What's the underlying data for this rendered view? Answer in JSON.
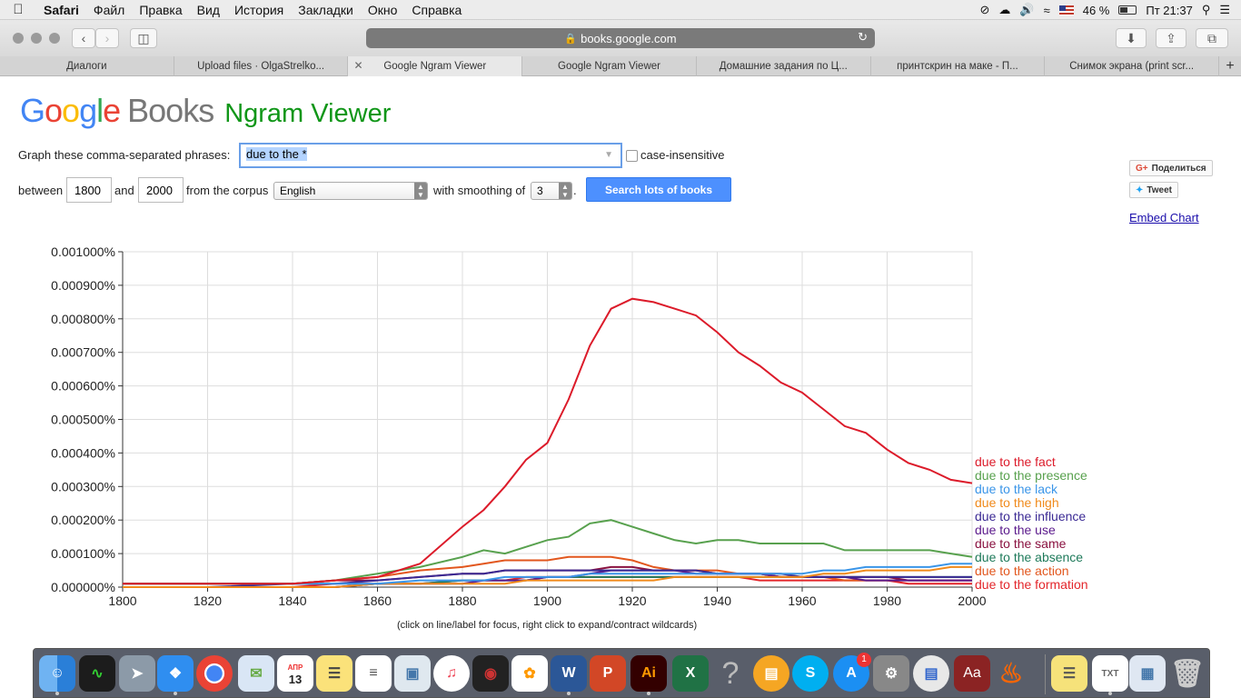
{
  "menubar": {
    "app_name": "Safari",
    "items": [
      "Файл",
      "Правка",
      "Вид",
      "История",
      "Закладки",
      "Окно",
      "Справка"
    ],
    "battery": "46 %",
    "clock": "Пт 21:37"
  },
  "toolbar": {
    "url": "books.google.com"
  },
  "tabs": [
    {
      "label": "Диалоги"
    },
    {
      "label": "Upload files · OlgaStrelko..."
    },
    {
      "label": "Google Ngram Viewer"
    },
    {
      "label": "Google Ngram Viewer"
    },
    {
      "label": "Домашние задания по Ц..."
    },
    {
      "label": "принтскрин на маке - П..."
    },
    {
      "label": "Снимок экрана (print scr..."
    }
  ],
  "logo": {
    "books": "Books",
    "ngram": "Ngram Viewer"
  },
  "form": {
    "phrases_label": "Graph these comma-separated phrases:",
    "phrase_value": "due to the *",
    "case_insensitive_label": "case-insensitive",
    "between_label": "between",
    "year_start": "1800",
    "and_label": "and",
    "year_end": "2000",
    "corpus_label": "from the corpus",
    "corpus_value": "English",
    "smoothing_label": "with smoothing of",
    "smoothing_value": "3",
    "period": ".",
    "search_button": "Search lots of books"
  },
  "social": {
    "share": "Поделиться",
    "tweet": "Tweet",
    "embed": "Embed Chart"
  },
  "footnote": "(click on line/label for focus, right click to expand/contract wildcards)",
  "dock": {
    "calendar_month": "АПР",
    "calendar_day": "13",
    "badge": "1",
    "illustrator": "Ai",
    "word": "W",
    "powerpoint": "P",
    "excel": "X",
    "dictionary": "Aa",
    "help": "?"
  },
  "chart_data": {
    "type": "line",
    "xlim": [
      1800,
      2000
    ],
    "ylim": [
      0,
      1e-05
    ],
    "x_ticks": [
      "1800",
      "1820",
      "1840",
      "1860",
      "1880",
      "1900",
      "1920",
      "1940",
      "1960",
      "1980",
      "2000"
    ],
    "y_ticks": [
      "0.000000%",
      "0.000100%",
      "0.000200%",
      "0.000300%",
      "0.000400%",
      "0.000500%",
      "0.000600%",
      "0.000700%",
      "0.000800%",
      "0.000900%",
      "0.001000%"
    ],
    "grid": true,
    "legend": "right",
    "x": [
      1800,
      1820,
      1840,
      1850,
      1860,
      1870,
      1880,
      1885,
      1890,
      1895,
      1900,
      1905,
      1910,
      1915,
      1920,
      1925,
      1930,
      1935,
      1940,
      1945,
      1950,
      1955,
      1960,
      1965,
      1970,
      1975,
      1980,
      1985,
      1990,
      1995,
      2000
    ],
    "series": [
      {
        "name": "due to the fact",
        "color": "#dc1b2a",
        "values": [
          1e-07,
          1e-07,
          1e-07,
          2e-07,
          3e-07,
          7e-07,
          1.8e-06,
          2.3e-06,
          3e-06,
          3.8e-06,
          4.3e-06,
          5.6e-06,
          7.2e-06,
          8.3e-06,
          8.6e-06,
          8.5e-06,
          8.3e-06,
          8.1e-06,
          7.6e-06,
          7e-06,
          6.6e-06,
          6.1e-06,
          5.8e-06,
          5.3e-06,
          4.8e-06,
          4.6e-06,
          4.1e-06,
          3.7e-06,
          3.5e-06,
          3.2e-06,
          3.1e-06
        ]
      },
      {
        "name": "due to the presence",
        "color": "#58a14e",
        "values": [
          1e-07,
          1e-07,
          1e-07,
          2e-07,
          4e-07,
          6e-07,
          9e-07,
          1.1e-06,
          1e-06,
          1.2e-06,
          1.4e-06,
          1.5e-06,
          1.9e-06,
          2e-06,
          1.8e-06,
          1.6e-06,
          1.4e-06,
          1.3e-06,
          1.4e-06,
          1.4e-06,
          1.3e-06,
          1.3e-06,
          1.3e-06,
          1.3e-06,
          1.1e-06,
          1.1e-06,
          1.1e-06,
          1.1e-06,
          1.1e-06,
          1e-06,
          9e-07
        ]
      },
      {
        "name": "due to the lack",
        "color": "#3a95e8",
        "values": [
          1e-07,
          1e-07,
          1e-07,
          1e-07,
          1e-07,
          2e-07,
          2e-07,
          2e-07,
          3e-07,
          3e-07,
          3e-07,
          3e-07,
          4e-07,
          4e-07,
          4e-07,
          4e-07,
          4e-07,
          4e-07,
          4e-07,
          4e-07,
          4e-07,
          4e-07,
          4e-07,
          5e-07,
          5e-07,
          6e-07,
          6e-07,
          6e-07,
          6e-07,
          7e-07,
          7e-07
        ]
      },
      {
        "name": "due to the high",
        "color": "#f08a1b",
        "values": [
          0.0,
          0.0,
          0.0,
          0.0,
          1e-07,
          1e-07,
          1e-07,
          1e-07,
          1e-07,
          2e-07,
          2e-07,
          2e-07,
          2e-07,
          2e-07,
          2e-07,
          2e-07,
          3e-07,
          3e-07,
          3e-07,
          3e-07,
          3e-07,
          3e-07,
          3e-07,
          4e-07,
          4e-07,
          5e-07,
          5e-07,
          5e-07,
          5e-07,
          6e-07,
          6e-07
        ]
      },
      {
        "name": "due to the influence",
        "color": "#3b2a94",
        "values": [
          0.0,
          0.0,
          1e-07,
          1e-07,
          2e-07,
          3e-07,
          4e-07,
          4e-07,
          5e-07,
          5e-07,
          5e-07,
          5e-07,
          5e-07,
          5e-07,
          5e-07,
          5e-07,
          5e-07,
          5e-07,
          4e-07,
          4e-07,
          4e-07,
          4e-07,
          3e-07,
          3e-07,
          3e-07,
          3e-07,
          3e-07,
          3e-07,
          3e-07,
          3e-07,
          3e-07
        ]
      },
      {
        "name": "due to the use",
        "color": "#5b1a8c",
        "values": [
          0.0,
          0.0,
          0.0,
          0.0,
          1e-07,
          1e-07,
          1e-07,
          2e-07,
          2e-07,
          2e-07,
          3e-07,
          3e-07,
          4e-07,
          5e-07,
          5e-07,
          5e-07,
          5e-07,
          4e-07,
          4e-07,
          4e-07,
          4e-07,
          3e-07,
          3e-07,
          3e-07,
          3e-07,
          2e-07,
          2e-07,
          2e-07,
          2e-07,
          2e-07,
          2e-07
        ]
      },
      {
        "name": "due to the same",
        "color": "#8a1240",
        "values": [
          1e-07,
          1e-07,
          1e-07,
          2e-07,
          2e-07,
          3e-07,
          4e-07,
          4e-07,
          5e-07,
          5e-07,
          5e-07,
          5e-07,
          5e-07,
          6e-07,
          6e-07,
          5e-07,
          5e-07,
          5e-07,
          4e-07,
          4e-07,
          4e-07,
          3e-07,
          3e-07,
          3e-07,
          3e-07,
          3e-07,
          3e-07,
          2e-07,
          2e-07,
          2e-07,
          2e-07
        ]
      },
      {
        "name": "due to the absence",
        "color": "#1e7a5a",
        "values": [
          0.0,
          0.0,
          0.0,
          0.0,
          1e-07,
          1e-07,
          2e-07,
          2e-07,
          2e-07,
          2e-07,
          3e-07,
          3e-07,
          3e-07,
          3e-07,
          3e-07,
          3e-07,
          3e-07,
          3e-07,
          3e-07,
          3e-07,
          3e-07,
          3e-07,
          3e-07,
          3e-07,
          3e-07,
          3e-07,
          3e-07,
          3e-07,
          3e-07,
          3e-07,
          3e-07
        ]
      },
      {
        "name": "due to the action",
        "color": "#e2571e",
        "values": [
          1e-07,
          1e-07,
          1e-07,
          2e-07,
          3e-07,
          5e-07,
          6e-07,
          7e-07,
          8e-07,
          8e-07,
          8e-07,
          9e-07,
          9e-07,
          9e-07,
          8e-07,
          6e-07,
          5e-07,
          5e-07,
          5e-07,
          4e-07,
          4e-07,
          3e-07,
          3e-07,
          3e-07,
          2e-07,
          2e-07,
          2e-07,
          2e-07,
          2e-07,
          2e-07,
          2e-07
        ]
      },
      {
        "name": "due to the formation",
        "color": "#e3262b",
        "values": [
          0.0,
          0.0,
          0.0,
          1e-07,
          1e-07,
          1e-07,
          2e-07,
          2e-07,
          2e-07,
          3e-07,
          3e-07,
          3e-07,
          3e-07,
          3e-07,
          3e-07,
          3e-07,
          3e-07,
          3e-07,
          3e-07,
          3e-07,
          2e-07,
          2e-07,
          2e-07,
          2e-07,
          2e-07,
          2e-07,
          2e-07,
          1e-07,
          1e-07,
          1e-07,
          1e-07
        ]
      }
    ]
  }
}
